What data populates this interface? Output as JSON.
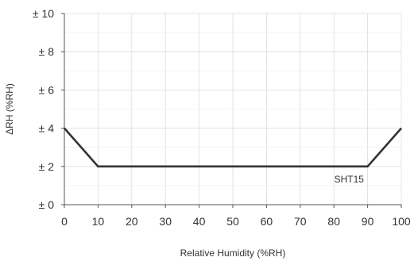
{
  "chart_data": {
    "type": "line",
    "title": "",
    "xlabel": "Relative Humidity (%RH)",
    "ylabel": "ΔRH (%RH)",
    "xlim": [
      0,
      100
    ],
    "ylim": [
      0,
      10
    ],
    "x_ticks": [
      0,
      10,
      20,
      30,
      40,
      50,
      60,
      70,
      80,
      90,
      100
    ],
    "x_tick_labels": [
      "0",
      "10",
      "20",
      "30",
      "40",
      "50",
      "60",
      "70",
      "80",
      "90",
      "100"
    ],
    "y_ticks": [
      0,
      2,
      4,
      6,
      8,
      10
    ],
    "y_tick_labels": [
      "± 0",
      "± 2",
      "± 4",
      "± 6",
      "± 8",
      "± 10"
    ],
    "grid": true,
    "legend": "none",
    "series": [
      {
        "name": "SHT15",
        "x": [
          0,
          10,
          90,
          100
        ],
        "y": [
          4,
          2,
          2,
          4
        ],
        "color": "#333333"
      }
    ]
  }
}
